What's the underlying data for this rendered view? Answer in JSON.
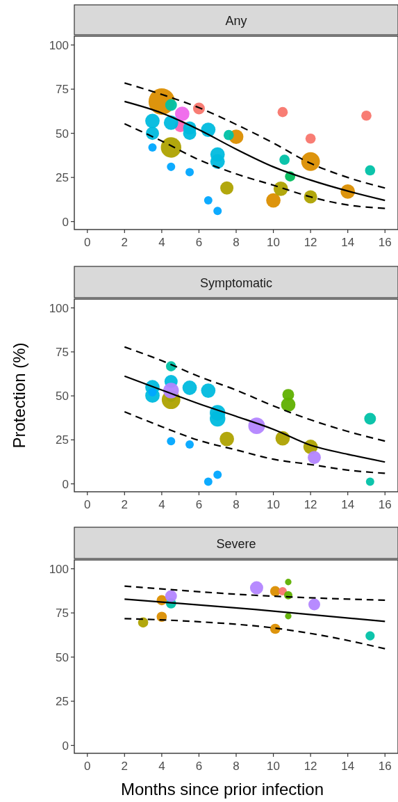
{
  "chart_data": [
    {
      "type": "bubble",
      "title": "Any",
      "xlim": [
        -0.7,
        16.7
      ],
      "ylim": [
        -4.5,
        105
      ],
      "xticks": [
        0,
        2,
        4,
        6,
        8,
        10,
        12,
        14,
        16
      ],
      "yticks": [
        0,
        25,
        50,
        75,
        100
      ],
      "grid": false,
      "series": [
        {
          "color": "#db8e00",
          "x": [
            4.0,
            8.0,
            12.0,
            10.0,
            14.0
          ],
          "values": [
            68,
            48,
            34,
            12,
            17
          ],
          "sizes": [
            1,
            0.3,
            0.5,
            0.3,
            0.3
          ]
        },
        {
          "color": "#00c1a7",
          "x": [
            4.5,
            7.6,
            10.6,
            15.2
          ],
          "values": [
            66,
            49,
            35,
            29
          ],
          "sizes": [
            0.2,
            0.15,
            0.15,
            0.15
          ]
        },
        {
          "color": "#ef67eb",
          "x": [
            5.1
          ],
          "values": [
            61
          ],
          "sizes": [
            0.3
          ]
        },
        {
          "color": "#f8766d",
          "x": [
            6.0,
            10.5,
            12.0,
            15.0
          ],
          "values": [
            64,
            62,
            47,
            60
          ],
          "sizes": [
            0.2,
            0.15,
            0.15,
            0.15
          ]
        },
        {
          "color": "#ff63b6",
          "x": [
            5.0
          ],
          "values": [
            54
          ],
          "sizes": [
            0.2
          ]
        },
        {
          "color": "#00bade",
          "x": [
            3.5,
            3.5,
            4.5,
            5.5,
            5.5,
            6.5,
            7.0,
            7.0
          ],
          "values": [
            57,
            50,
            56,
            53,
            50,
            52,
            38,
            34
          ],
          "sizes": [
            0.3,
            0.25,
            0.3,
            0.25,
            0.25,
            0.3,
            0.3,
            0.3
          ]
        },
        {
          "color": "#00a6ff",
          "x": [
            3.5,
            4.5,
            5.5,
            6.5,
            7.0
          ],
          "values": [
            42,
            31,
            28,
            12,
            6
          ],
          "sizes": [
            0.1,
            0.1,
            0.1,
            0.1,
            0.1
          ]
        },
        {
          "color": "#aea200",
          "x": [
            4.5,
            7.5,
            10.4,
            12.0
          ],
          "values": [
            42,
            19,
            18.6,
            14
          ],
          "sizes": [
            0.6,
            0.25,
            0.3,
            0.25
          ]
        },
        {
          "color": "#00bd5c",
          "x": [
            10.9
          ],
          "values": [
            25.6
          ],
          "sizes": [
            0.15
          ]
        },
        {
          "type": "line",
          "color": "#000000",
          "line_style": "solid",
          "x": [
            2,
            4,
            6,
            8,
            10,
            12,
            14,
            16
          ],
          "values": [
            68,
            61.5,
            52,
            41,
            31,
            23.5,
            17.3,
            12
          ]
        },
        {
          "type": "line",
          "color": "#000000",
          "line_style": "dashed",
          "x": [
            2,
            4,
            6,
            8,
            10,
            12,
            14,
            16
          ],
          "values": [
            78.5,
            72,
            64.5,
            55,
            44.5,
            33,
            25,
            19
          ]
        },
        {
          "type": "line",
          "color": "#000000",
          "line_style": "dashed",
          "x": [
            2,
            4,
            6,
            8,
            10,
            12,
            14,
            16
          ],
          "values": [
            55.4,
            45.6,
            35,
            27,
            20.6,
            14,
            9.4,
            7.5
          ]
        }
      ]
    },
    {
      "type": "bubble",
      "title": "Symptomatic",
      "ylabel": "Protection (%)",
      "xlim": [
        -0.7,
        16.7
      ],
      "ylim": [
        -4.5,
        105
      ],
      "xticks": [
        0,
        2,
        4,
        6,
        8,
        10,
        12,
        14,
        16
      ],
      "yticks": [
        0,
        25,
        50,
        75,
        100
      ],
      "grid": false,
      "series": [
        {
          "color": "#00c1a7",
          "x": [
            4.5,
            4.5,
            15.2,
            15.2
          ],
          "values": [
            66.8,
            49.4,
            37,
            1.2
          ],
          "sizes": [
            0.3,
            0.3,
            0.4,
            0.2
          ]
        },
        {
          "color": "#aea200",
          "x": [
            4.5,
            7.5,
            10.5,
            12.0
          ],
          "values": [
            47.8,
            25.5,
            25.9,
            21
          ],
          "sizes": [
            1,
            0.6,
            0.6,
            0.6
          ]
        },
        {
          "color": "#00bade",
          "x": [
            4.5,
            3.5,
            3.5,
            5.5,
            6.5,
            7.0,
            7.0
          ],
          "values": [
            58.2,
            54.9,
            50.2,
            54.6,
            53,
            40.4,
            37
          ],
          "sizes": [
            0.5,
            0.6,
            0.6,
            0.6,
            0.6,
            0.7,
            0.7
          ]
        },
        {
          "color": "#00a6ff",
          "x": [
            3.5,
            4.5,
            5.5,
            6.5,
            7.0
          ],
          "values": [
            52,
            24.3,
            22.4,
            1.2,
            5.2
          ],
          "sizes": [
            0.2,
            0.2,
            0.2,
            0.2,
            0.2
          ]
        },
        {
          "color": "#b385ff",
          "x": [
            4.5,
            9.1,
            12.2
          ],
          "values": [
            53,
            33,
            15
          ],
          "sizes": [
            0.7,
            0.8,
            0.5
          ]
        },
        {
          "color": "#5fb000",
          "x": [
            10.8,
            10.8
          ],
          "values": [
            50.6,
            45
          ],
          "sizes": [
            0.4,
            0.6
          ]
        },
        {
          "type": "line",
          "color": "#000000",
          "line_style": "solid",
          "x": [
            2,
            4,
            6,
            8,
            10,
            12,
            14,
            16
          ],
          "values": [
            61.2,
            53.3,
            45.5,
            38.4,
            31,
            22,
            16.8,
            12.4
          ]
        },
        {
          "type": "line",
          "color": "#000000",
          "line_style": "dashed",
          "x": [
            2,
            4,
            6,
            8,
            10,
            12,
            14,
            16
          ],
          "values": [
            77.8,
            70,
            61,
            53.3,
            44.3,
            36.4,
            29.8,
            24.3
          ]
        },
        {
          "type": "line",
          "color": "#000000",
          "line_style": "dashed",
          "x": [
            2,
            4,
            6,
            8,
            10,
            12,
            14,
            16
          ],
          "values": [
            41,
            32.5,
            24.7,
            19.3,
            14,
            11,
            7.8,
            6
          ]
        }
      ]
    },
    {
      "type": "bubble",
      "title": "Severe",
      "xlabel": "Months since prior infection",
      "xlim": [
        -0.7,
        16.7
      ],
      "ylim": [
        -4.5,
        105
      ],
      "xticks": [
        0,
        2,
        4,
        6,
        8,
        10,
        12,
        14,
        16
      ],
      "yticks": [
        0,
        25,
        50,
        75,
        100
      ],
      "grid": false,
      "series": [
        {
          "color": "#aea200",
          "x": [
            3.0
          ],
          "values": [
            69.6
          ],
          "sizes": [
            0.6
          ]
        },
        {
          "color": "#db8e00",
          "x": [
            4.0,
            4.0,
            10.1,
            10.1
          ],
          "values": [
            82.2,
            72.8,
            87.3,
            66
          ],
          "sizes": [
            0.6,
            0.6,
            0.6,
            0.6
          ]
        },
        {
          "color": "#00c1a7",
          "x": [
            4.5,
            15.2
          ],
          "values": [
            80.4,
            62
          ],
          "sizes": [
            0.6,
            0.48
          ]
        },
        {
          "color": "#b385ff",
          "x": [
            4.5,
            9.1,
            12.2
          ],
          "values": [
            84.5,
            89.2,
            79.8
          ],
          "sizes": [
            0.8,
            1,
            0.8
          ]
        },
        {
          "color": "#f8766d",
          "x": [
            10.5
          ],
          "values": [
            87.3
          ],
          "sizes": [
            0.4
          ]
        },
        {
          "color": "#5fb000",
          "x": [
            10.8,
            10.8,
            10.8
          ],
          "values": [
            92.5,
            85,
            73.2
          ],
          "sizes": [
            0.24,
            0.4,
            0.24
          ]
        },
        {
          "type": "line",
          "color": "#000000",
          "line_style": "solid",
          "x": [
            2,
            9,
            16
          ],
          "values": [
            82.8,
            77,
            70.2
          ]
        },
        {
          "type": "line",
          "color": "#000000",
          "line_style": "dashed",
          "x": [
            2,
            9,
            16
          ],
          "values": [
            90.2,
            85,
            82.2
          ]
        },
        {
          "type": "line",
          "color": "#000000",
          "line_style": "dashed",
          "x": [
            2,
            6,
            10,
            13,
            16
          ],
          "values": [
            71.8,
            70,
            66.5,
            61.5,
            54.7
          ]
        }
      ]
    }
  ]
}
